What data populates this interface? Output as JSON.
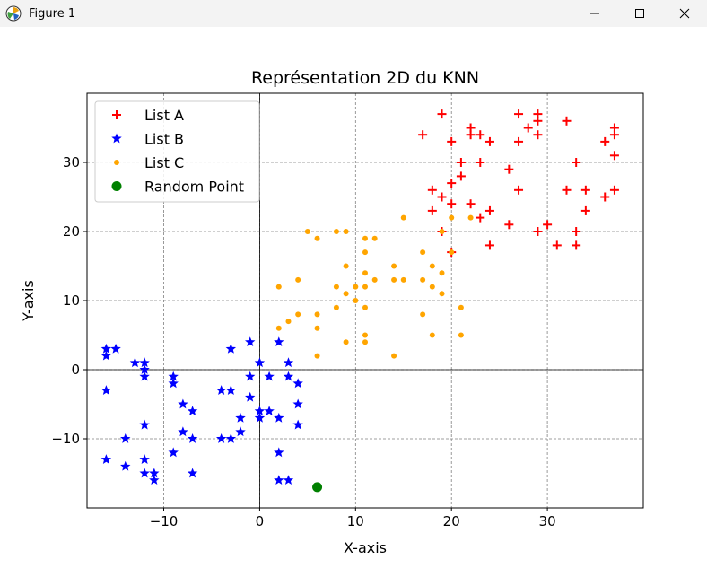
{
  "window": {
    "title": "Figure 1",
    "controls": [
      "minimize",
      "maximize",
      "close"
    ]
  },
  "colors": {
    "list_a": "#ff0000",
    "list_b": "#0000ff",
    "list_c": "#ffa500",
    "random_point": "#008000",
    "grid": "#808080"
  },
  "chart_data": {
    "type": "scatter",
    "title": "Représentation 2D du KNN",
    "xlabel": "X-axis",
    "ylabel": "Y-axis",
    "xlim": [
      -18,
      40
    ],
    "ylim": [
      -20,
      40
    ],
    "xticks": [
      -10,
      0,
      10,
      20,
      30
    ],
    "yticks": [
      -10,
      0,
      10,
      20,
      30
    ],
    "grid": true,
    "grid_style": "dashed",
    "zero_lines": true,
    "legend_position": "upper left",
    "series": [
      {
        "name": "List A",
        "marker": "plus",
        "color": "#ff0000",
        "points": [
          [
            19,
            37
          ],
          [
            17,
            34
          ],
          [
            20,
            33
          ],
          [
            22,
            35
          ],
          [
            22,
            34
          ],
          [
            23,
            34
          ],
          [
            24,
            33
          ],
          [
            27,
            37
          ],
          [
            27,
            33
          ],
          [
            28,
            35
          ],
          [
            29,
            37
          ],
          [
            29,
            36
          ],
          [
            29,
            34
          ],
          [
            32,
            36
          ],
          [
            33,
            30
          ],
          [
            36,
            33
          ],
          [
            37,
            35
          ],
          [
            37,
            34
          ],
          [
            37,
            31
          ],
          [
            21,
            30
          ],
          [
            23,
            30
          ],
          [
            26,
            29
          ],
          [
            21,
            28
          ],
          [
            20,
            27
          ],
          [
            18,
            26
          ],
          [
            19,
            25
          ],
          [
            27,
            26
          ],
          [
            20,
            24
          ],
          [
            22,
            24
          ],
          [
            18,
            23
          ],
          [
            24,
            23
          ],
          [
            23,
            22
          ],
          [
            26,
            21
          ],
          [
            30,
            21
          ],
          [
            29,
            20
          ],
          [
            19,
            20
          ],
          [
            24,
            18
          ],
          [
            31,
            18
          ],
          [
            33,
            18
          ],
          [
            33,
            20
          ],
          [
            34,
            23
          ],
          [
            32,
            26
          ],
          [
            34,
            26
          ],
          [
            36,
            25
          ],
          [
            37,
            26
          ],
          [
            20,
            17
          ]
        ]
      },
      {
        "name": "List B",
        "marker": "star",
        "color": "#0000ff",
        "points": [
          [
            -16,
            3
          ],
          [
            -16,
            2
          ],
          [
            -15,
            3
          ],
          [
            -13,
            1
          ],
          [
            -12,
            1
          ],
          [
            -12,
            0
          ],
          [
            -12,
            -1
          ],
          [
            -9,
            -1
          ],
          [
            -9,
            -2
          ],
          [
            -16,
            -3
          ],
          [
            -12,
            -8
          ],
          [
            -14,
            -10
          ],
          [
            -16,
            -13
          ],
          [
            -14,
            -14
          ],
          [
            -12,
            -13
          ],
          [
            -12,
            -15
          ],
          [
            -11,
            -15
          ],
          [
            -11,
            -16
          ],
          [
            -9,
            -12
          ],
          [
            -8,
            -9
          ],
          [
            -7,
            -10
          ],
          [
            -8,
            -5
          ],
          [
            -7,
            -6
          ],
          [
            -7,
            -15
          ],
          [
            -4,
            -3
          ],
          [
            -3,
            -3
          ],
          [
            -3,
            3
          ],
          [
            -4,
            -10
          ],
          [
            -3,
            -10
          ],
          [
            -2,
            -9
          ],
          [
            -2,
            -7
          ],
          [
            -1,
            4
          ],
          [
            -1,
            -1
          ],
          [
            -1,
            -4
          ],
          [
            0,
            1
          ],
          [
            0,
            -6
          ],
          [
            0,
            -7
          ],
          [
            1,
            -1
          ],
          [
            1,
            -6
          ],
          [
            2,
            4
          ],
          [
            2,
            -7
          ],
          [
            2,
            -12
          ],
          [
            2,
            -16
          ],
          [
            3,
            1
          ],
          [
            3,
            -1
          ],
          [
            3,
            -16
          ],
          [
            4,
            -2
          ],
          [
            4,
            -5
          ],
          [
            4,
            -8
          ]
        ]
      },
      {
        "name": "List C",
        "marker": "dot",
        "color": "#ffa500",
        "points": [
          [
            5,
            20
          ],
          [
            6,
            19
          ],
          [
            8,
            20
          ],
          [
            9,
            20
          ],
          [
            11,
            19
          ],
          [
            12,
            19
          ],
          [
            15,
            22
          ],
          [
            19,
            20
          ],
          [
            20,
            22
          ],
          [
            22,
            22
          ],
          [
            11,
            17
          ],
          [
            17,
            17
          ],
          [
            20,
            17
          ],
          [
            9,
            15
          ],
          [
            11,
            14
          ],
          [
            14,
            15
          ],
          [
            18,
            15
          ],
          [
            4,
            13
          ],
          [
            8,
            12
          ],
          [
            10,
            12
          ],
          [
            11,
            12
          ],
          [
            12,
            13
          ],
          [
            14,
            13
          ],
          [
            15,
            13
          ],
          [
            17,
            13
          ],
          [
            19,
            14
          ],
          [
            2,
            12
          ],
          [
            9,
            11
          ],
          [
            10,
            10
          ],
          [
            18,
            12
          ],
          [
            19,
            11
          ],
          [
            4,
            8
          ],
          [
            6,
            8
          ],
          [
            8,
            9
          ],
          [
            11,
            9
          ],
          [
            17,
            8
          ],
          [
            21,
            9
          ],
          [
            2,
            6
          ],
          [
            3,
            7
          ],
          [
            6,
            6
          ],
          [
            11,
            5
          ],
          [
            18,
            5
          ],
          [
            21,
            5
          ],
          [
            9,
            4
          ],
          [
            11,
            4
          ],
          [
            6,
            2
          ],
          [
            14,
            2
          ]
        ]
      },
      {
        "name": "Random Point",
        "marker": "circle",
        "color": "#008000",
        "points": [
          [
            6,
            -17
          ]
        ]
      }
    ]
  }
}
